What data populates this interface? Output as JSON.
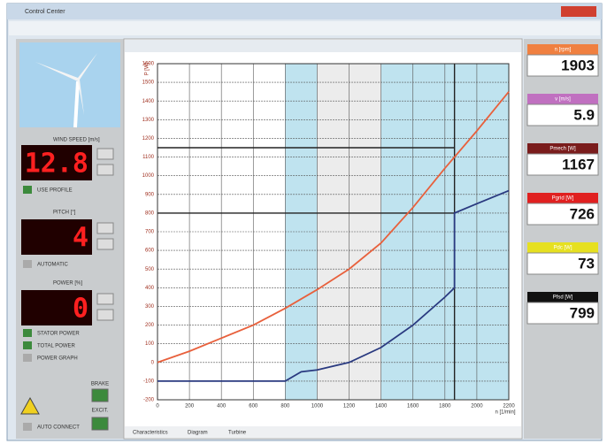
{
  "window": {
    "title": "Control Center"
  },
  "controls": {
    "wind_speed": {
      "label": "WIND SPEED [m/s]",
      "value": "12.8",
      "option": "USE PROFILE"
    },
    "pitch": {
      "label": "PITCH [°]",
      "value": "4",
      "option": "AUTOMATIC"
    },
    "power": {
      "label": "POWER [%]",
      "value": "0",
      "options": [
        "STATOR POWER",
        "TOTAL POWER",
        "POWER GRAPH"
      ]
    },
    "auto_connect": "AUTO CONNECT",
    "brake": "BRAKE",
    "excit": "EXCIT."
  },
  "readouts": [
    {
      "label": "n [rpm]",
      "value": 1903,
      "color": "#f08040"
    },
    {
      "label": "v [m/s]",
      "value": 5.9,
      "color": "#c070c0"
    },
    {
      "label": "Pmech [W]",
      "value": 1167,
      "color": "#7a1c1c"
    },
    {
      "label": "Pgrid [W]",
      "value": 726,
      "color": "#e02020"
    },
    {
      "label": "Pdc [W]",
      "value": 73,
      "color": "#e6e020"
    },
    {
      "label": "Pfsd [W]",
      "value": 799,
      "color": "#111111"
    }
  ],
  "tabs": [
    "Characteristics",
    "Diagram",
    "Turbine"
  ],
  "chart_data": {
    "type": "line",
    "x_label": "n [1/min]",
    "y_label": "P [W]",
    "xlim": [
      0,
      2200
    ],
    "ylim": [
      -200,
      1600
    ],
    "xticks": [
      0,
      200,
      400,
      600,
      800,
      1000,
      1200,
      1400,
      1600,
      1800,
      2000,
      2200
    ],
    "yticks": [
      -200,
      -100,
      0,
      100,
      200,
      300,
      400,
      500,
      600,
      700,
      800,
      900,
      1000,
      1100,
      1200,
      1300,
      1400,
      1500,
      1600
    ],
    "grid": true,
    "bands": [
      {
        "range": [
          800,
          1000
        ],
        "color": "#bfe3ef"
      },
      {
        "range": [
          1000,
          1400
        ],
        "color": "#ececec"
      },
      {
        "range": [
          1400,
          2200
        ],
        "color": "#bfe3ef"
      }
    ],
    "series": [
      {
        "color": "#e8603c",
        "x": [
          0,
          200,
          400,
          600,
          800,
          1000,
          1200,
          1400,
          1600,
          1800,
          2000,
          2200
        ],
        "values": [
          0,
          60,
          130,
          200,
          290,
          390,
          500,
          640,
          830,
          1040,
          1240,
          1450
        ]
      },
      {
        "color": "#2a3a80",
        "x": [
          0,
          800,
          900,
          1000,
          1200,
          1400,
          1600,
          1800,
          1860,
          1860,
          2000,
          2200
        ],
        "values": [
          -100,
          -100,
          -50,
          -40,
          0,
          80,
          200,
          350,
          400,
          800,
          850,
          920
        ]
      }
    ],
    "ref_x": 1860,
    "ref_y": [
      1150,
      800
    ]
  }
}
